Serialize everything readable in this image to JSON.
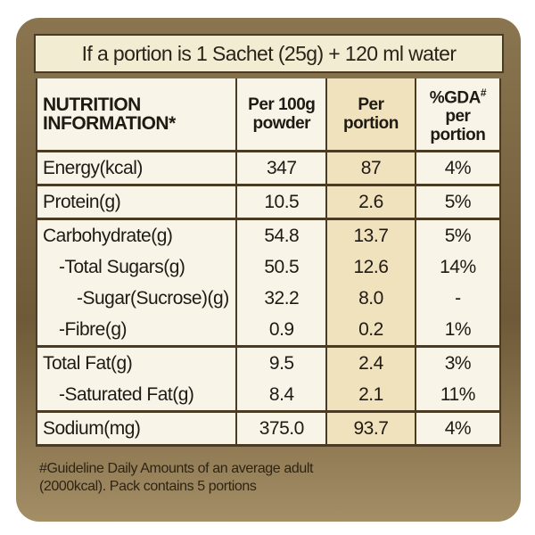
{
  "header": {
    "title": "If a portion is 1 Sachet (25g) + 120 ml water"
  },
  "table": {
    "columns": [
      {
        "lines": [
          "NUTRITION",
          "INFORMATION*"
        ]
      },
      {
        "lines": [
          "Per 100g",
          "powder"
        ]
      },
      {
        "lines": [
          "Per",
          "portion"
        ]
      },
      {
        "lines": [
          "%GDA",
          "per",
          "portion"
        ],
        "sup": "#"
      }
    ],
    "groups": [
      {
        "rows": [
          [
            "Energy(kcal)",
            "347",
            "87",
            "4%"
          ]
        ]
      },
      {
        "rows": [
          [
            "Protein(g)",
            "10.5",
            "2.6",
            "5%"
          ]
        ]
      },
      {
        "rows": [
          [
            "Carbohydrate(g)",
            "54.8",
            "13.7",
            "5%"
          ],
          [
            "-Total Sugars(g)",
            "50.5",
            "12.6",
            "14%"
          ],
          [
            "-Sugar(Sucrose)(g)",
            "32.2",
            "8.0",
            "-"
          ],
          [
            "-Fibre(g)",
            "0.9",
            "0.2",
            "1%"
          ]
        ]
      },
      {
        "rows": [
          [
            "Total Fat(g)",
            "9.5",
            "2.4",
            "3%"
          ],
          [
            "-Saturated Fat(g)",
            "8.4",
            "2.1",
            "11%"
          ]
        ]
      },
      {
        "rows": [
          [
            "Sodium(mg)",
            "375.0",
            "93.7",
            "4%"
          ]
        ]
      }
    ]
  },
  "footnote": {
    "lines": [
      "#Guideline Daily Amounts of an average adult",
      "(2000kcal). Pack contains 5 portions"
    ]
  }
}
